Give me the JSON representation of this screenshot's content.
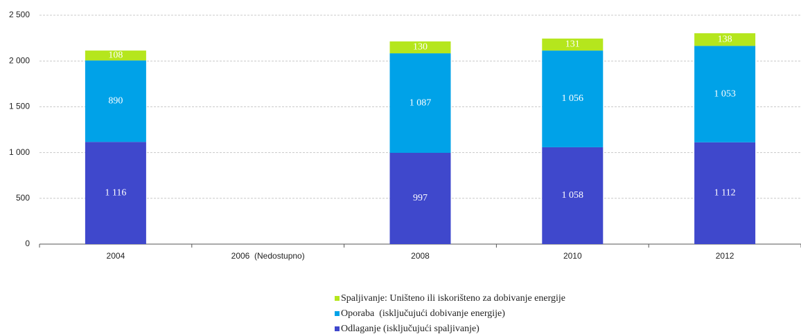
{
  "chart_data": {
    "type": "stacked_bar",
    "categories": [
      "2004",
      "2006  (Nedostupno)",
      "2008",
      "2010",
      "2012"
    ],
    "series": [
      {
        "name": "Odlaganje (isključujući spaljivanje)",
        "color": "#3f48cc",
        "values": [
          1116,
          null,
          997,
          1058,
          1112
        ],
        "value_labels": [
          "1 116",
          null,
          "997",
          "1 058",
          "1 112"
        ]
      },
      {
        "name": "Oporaba  (isključujući dobivanje energije)",
        "color": "#00a2e8",
        "values": [
          890,
          null,
          1087,
          1056,
          1053
        ],
        "value_labels": [
          "890",
          null,
          "1 087",
          "1 056",
          "1 053"
        ]
      },
      {
        "name": "Spaljivanje: Uništeno ili iskorišteno za dobivanje energije",
        "color": "#b5e61d",
        "values": [
          108,
          null,
          130,
          131,
          138
        ],
        "value_labels": [
          "108",
          null,
          "130",
          "131",
          "138"
        ]
      }
    ],
    "ylim": [
      0,
      2500
    ],
    "yticks": [
      0,
      500,
      {
        "value": 1000,
        "label": "1 000"
      },
      {
        "value": 1500,
        "label": "1 500"
      },
      {
        "value": 2000,
        "label": "2 000"
      },
      {
        "value": 2500,
        "label": "2 500"
      }
    ],
    "grid": true
  }
}
